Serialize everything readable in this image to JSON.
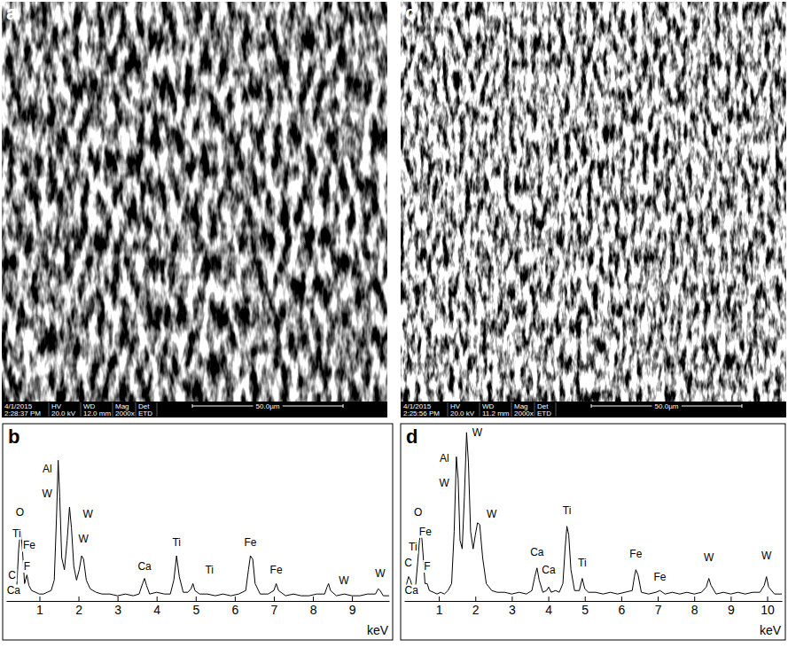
{
  "images": [
    {
      "panel_label": "a",
      "date": "4/1/2015",
      "time": "2:28:37 PM",
      "columns": [
        {
          "header": "HV",
          "value": "20.0 kV"
        },
        {
          "header": "WD",
          "value": "12.0 mm"
        },
        {
          "header": "Mag",
          "value": "2000x"
        },
        {
          "header": "Det",
          "value": "ETD"
        }
      ],
      "scale_bar": "50.0µm"
    },
    {
      "panel_label": "c",
      "date": "4/1/2015",
      "time": "2:25:56 PM",
      "columns": [
        {
          "header": "HV",
          "value": "20.0 kV"
        },
        {
          "header": "WD",
          "value": "11.2 mm"
        },
        {
          "header": "Mag",
          "value": "2000x"
        },
        {
          "header": "Det",
          "value": "ETD"
        }
      ],
      "scale_bar": "50.0µm"
    }
  ],
  "chart_data": [
    {
      "type": "line",
      "panel_label": "b",
      "x_label": "keV",
      "color": "#000000",
      "x": [
        0.15,
        0.2,
        0.25,
        0.3,
        0.35,
        0.42,
        0.47,
        0.52,
        0.57,
        0.62,
        0.68,
        0.73,
        0.8,
        0.9,
        1.0,
        1.1,
        1.2,
        1.3,
        1.38,
        1.44,
        1.48,
        1.52,
        1.57,
        1.64,
        1.71,
        1.77,
        1.82,
        1.88,
        1.95,
        2.02,
        2.08,
        2.13,
        2.2,
        2.3,
        2.45,
        2.6,
        2.8,
        3.0,
        3.2,
        3.4,
        3.55,
        3.64,
        3.69,
        3.74,
        3.82,
        4.0,
        4.2,
        4.35,
        4.44,
        4.51,
        4.58,
        4.68,
        4.8,
        4.88,
        4.93,
        4.98,
        5.1,
        5.3,
        5.5,
        5.7,
        5.9,
        6.1,
        6.28,
        6.35,
        6.4,
        6.46,
        6.52,
        6.65,
        6.85,
        7.0,
        7.06,
        7.12,
        7.3,
        7.5,
        7.7,
        7.9,
        8.1,
        8.3,
        8.36,
        8.4,
        8.45,
        8.6,
        8.8,
        9.0,
        9.2,
        9.4,
        9.6,
        9.67,
        9.72,
        9.8,
        9.95
      ],
      "values": [
        3,
        6,
        9,
        7,
        4,
        8,
        30,
        42,
        28,
        10,
        15,
        9,
        6,
        5,
        4,
        4,
        5,
        6,
        12,
        50,
        81,
        60,
        25,
        18,
        35,
        54,
        42,
        20,
        12,
        18,
        26,
        24,
        12,
        7,
        5,
        4,
        4,
        3,
        4,
        3,
        4,
        10,
        13,
        9,
        4,
        5,
        4,
        4,
        12,
        26,
        14,
        5,
        5,
        7,
        10,
        6,
        4,
        4,
        3,
        4,
        3,
        4,
        6,
        18,
        26,
        24,
        10,
        4,
        4,
        6,
        10,
        6,
        3,
        4,
        3,
        3,
        4,
        4,
        8,
        10,
        6,
        3,
        4,
        3,
        3,
        4,
        4,
        7,
        6,
        3,
        3
      ],
      "xlim": [
        0.15,
        9.95
      ],
      "xticks": [
        1,
        2,
        3,
        4,
        5,
        6,
        7,
        8,
        9
      ],
      "ylim": [
        0,
        100
      ],
      "tick_labels": "x",
      "annotations": [
        {
          "text": "O",
          "x": 0.5,
          "y": 51
        },
        {
          "text": "Ti",
          "x": 0.42,
          "y": 39
        },
        {
          "text": "Fe",
          "x": 0.74,
          "y": 32
        },
        {
          "text": "C",
          "x": 0.3,
          "y": 15
        },
        {
          "text": "F",
          "x": 0.68,
          "y": 20
        },
        {
          "text": "Ca",
          "x": 0.34,
          "y": 6
        },
        {
          "text": "Al",
          "x": 1.2,
          "y": 76
        },
        {
          "text": "W",
          "x": 1.2,
          "y": 62
        },
        {
          "text": "W",
          "x": 2.24,
          "y": 50
        },
        {
          "text": "W",
          "x": 2.13,
          "y": 36
        },
        {
          "text": "Ca",
          "x": 3.69,
          "y": 20
        },
        {
          "text": "Ti",
          "x": 4.51,
          "y": 34
        },
        {
          "text": "Ti",
          "x": 5.35,
          "y": 18
        },
        {
          "text": "Fe",
          "x": 6.4,
          "y": 34
        },
        {
          "text": "Fe",
          "x": 7.06,
          "y": 18
        },
        {
          "text": "W",
          "x": 8.79,
          "y": 12
        },
        {
          "text": "W",
          "x": 9.72,
          "y": 16
        }
      ]
    },
    {
      "type": "line",
      "panel_label": "d",
      "x_label": "keV",
      "color": "#000000",
      "x": [
        0.05,
        0.12,
        0.17,
        0.22,
        0.3,
        0.36,
        0.42,
        0.47,
        0.52,
        0.57,
        0.62,
        0.68,
        0.74,
        0.85,
        0.95,
        1.05,
        1.15,
        1.25,
        1.35,
        1.42,
        1.48,
        1.53,
        1.58,
        1.64,
        1.7,
        1.76,
        1.81,
        1.87,
        1.94,
        2.0,
        2.06,
        2.12,
        2.2,
        2.3,
        2.45,
        2.6,
        2.8,
        3.0,
        3.2,
        3.4,
        3.55,
        3.63,
        3.69,
        3.75,
        3.85,
        3.95,
        4.01,
        4.08,
        4.2,
        4.3,
        4.4,
        4.46,
        4.51,
        4.56,
        4.62,
        4.72,
        4.85,
        4.93,
        5.0,
        5.1,
        5.3,
        5.5,
        5.7,
        5.9,
        6.1,
        6.3,
        6.36,
        6.4,
        6.46,
        6.55,
        6.75,
        6.95,
        7.06,
        7.2,
        7.4,
        7.6,
        7.8,
        8.0,
        8.2,
        8.33,
        8.4,
        8.46,
        8.6,
        8.8,
        9.0,
        9.2,
        9.4,
        9.6,
        9.8,
        9.92,
        9.98,
        10.04,
        10.2,
        10.4
      ],
      "values": [
        4,
        10,
        14,
        12,
        6,
        8,
        22,
        35,
        40,
        26,
        10,
        10,
        6,
        5,
        4,
        5,
        4,
        6,
        10,
        40,
        83,
        70,
        35,
        30,
        60,
        97,
        80,
        40,
        30,
        38,
        45,
        44,
        25,
        10,
        6,
        5,
        5,
        4,
        5,
        4,
        6,
        14,
        19,
        12,
        5,
        6,
        8,
        5,
        6,
        5,
        10,
        30,
        43,
        38,
        18,
        6,
        6,
        13,
        7,
        5,
        5,
        4,
        5,
        4,
        5,
        6,
        14,
        18,
        15,
        5,
        4,
        5,
        6,
        4,
        5,
        4,
        5,
        4,
        5,
        8,
        13,
        9,
        4,
        5,
        4,
        5,
        4,
        5,
        5,
        9,
        14,
        8,
        4,
        4
      ],
      "xlim": [
        0.05,
        10.4
      ],
      "xticks": [
        1,
        2,
        3,
        4,
        5,
        6,
        7,
        8,
        9,
        10
      ],
      "ylim": [
        0,
        100
      ],
      "tick_labels": "x",
      "annotations": [
        {
          "text": "O",
          "x": 0.43,
          "y": 51
        },
        {
          "text": "Fe",
          "x": 0.63,
          "y": 40
        },
        {
          "text": "Ti",
          "x": 0.29,
          "y": 31
        },
        {
          "text": "C",
          "x": 0.16,
          "y": 22
        },
        {
          "text": "F",
          "x": 0.68,
          "y": 20
        },
        {
          "text": "Ca",
          "x": 0.25,
          "y": 6
        },
        {
          "text": "Al",
          "x": 1.15,
          "y": 82
        },
        {
          "text": "W",
          "x": 1.15,
          "y": 68
        },
        {
          "text": "W",
          "x": 2.05,
          "y": 97
        },
        {
          "text": "W",
          "x": 2.45,
          "y": 50
        },
        {
          "text": "Ca",
          "x": 3.69,
          "y": 28
        },
        {
          "text": "Ca",
          "x": 4.01,
          "y": 18
        },
        {
          "text": "Ti",
          "x": 4.51,
          "y": 52
        },
        {
          "text": "Ti",
          "x": 4.93,
          "y": 22
        },
        {
          "text": "Fe",
          "x": 6.4,
          "y": 27
        },
        {
          "text": "Fe",
          "x": 7.06,
          "y": 14
        },
        {
          "text": "W",
          "x": 8.4,
          "y": 25
        },
        {
          "text": "W",
          "x": 9.98,
          "y": 26
        }
      ]
    }
  ]
}
